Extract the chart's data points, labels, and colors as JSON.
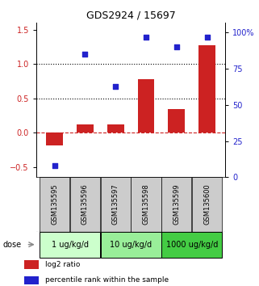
{
  "title": "GDS2924 / 15697",
  "samples": [
    "GSM135595",
    "GSM135596",
    "GSM135597",
    "GSM135598",
    "GSM135599",
    "GSM135600"
  ],
  "log2_ratio": [
    -0.18,
    0.12,
    0.12,
    0.78,
    0.35,
    1.28
  ],
  "percentile_rank": [
    8,
    85,
    63,
    97,
    90,
    97
  ],
  "ylim_left": [
    -0.65,
    1.6
  ],
  "ylim_right": [
    0,
    106.67
  ],
  "yticks_left": [
    -0.5,
    0.0,
    0.5,
    1.0,
    1.5
  ],
  "yticks_right": [
    0,
    25,
    50,
    75,
    100
  ],
  "ytick_labels_right": [
    "0",
    "25",
    "50",
    "75",
    "100%"
  ],
  "hlines_dotted": [
    0.5,
    1.0
  ],
  "hline_dashed_red": 0.0,
  "bar_color": "#cc2222",
  "dot_color": "#2222cc",
  "zero_line_color": "#cc2222",
  "dose_groups": [
    {
      "label": "1 ug/kg/d",
      "indices": [
        0,
        1
      ],
      "color": "#ccffcc"
    },
    {
      "label": "10 ug/kg/d",
      "indices": [
        2,
        3
      ],
      "color": "#99ee99"
    },
    {
      "label": "1000 ug/kg/d",
      "indices": [
        4,
        5
      ],
      "color": "#44cc44"
    }
  ],
  "dose_label": "dose",
  "legend_entries": [
    {
      "color": "#cc2222",
      "label": "log2 ratio"
    },
    {
      "color": "#2222cc",
      "label": "percentile rank within the sample"
    }
  ],
  "sample_box_color": "#cccccc",
  "bar_width": 0.55
}
